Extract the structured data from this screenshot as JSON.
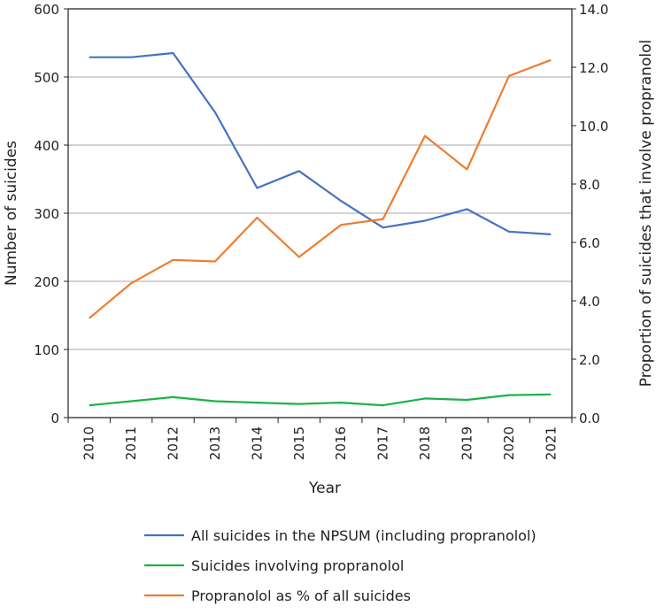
{
  "chart_data": {
    "type": "line",
    "categories": [
      "2010",
      "2011",
      "2012",
      "2013",
      "2014",
      "2015",
      "2016",
      "2017",
      "2018",
      "2019",
      "2020",
      "2021"
    ],
    "xlabel": "Year",
    "ylabel_left": "Number of suicides",
    "ylabel_right": "Proportion of suicides that involve propranolol",
    "ylim_left": [
      0,
      600
    ],
    "ylim_right": [
      0,
      14
    ],
    "yticks_left": [
      "0",
      "100",
      "200",
      "300",
      "400",
      "500",
      "600"
    ],
    "yticks_right": [
      "0.0",
      "2.0",
      "4.0",
      "6.0",
      "8.0",
      "10.0",
      "12.0",
      "14.0"
    ],
    "grid": true,
    "legend_position": "bottom",
    "series": [
      {
        "name": "All suicides in the NPSUM (including propranolol)",
        "axis": "left",
        "color": "#4472C4",
        "values": [
          529,
          529,
          535,
          448,
          337,
          362,
          318,
          279,
          289,
          306,
          273,
          269
        ]
      },
      {
        "name": "Suicides involving propranolol",
        "axis": "left",
        "color": "#1DB14B",
        "values": [
          18,
          24,
          30,
          24,
          22,
          20,
          22,
          18,
          28,
          26,
          33,
          34
        ]
      },
      {
        "name": "Propranolol as % of all suicides",
        "axis": "right",
        "color": "#ED7D31",
        "values": [
          3.4,
          4.6,
          5.4,
          5.35,
          6.85,
          5.5,
          6.6,
          6.8,
          9.65,
          8.5,
          11.7,
          12.25
        ]
      }
    ]
  }
}
